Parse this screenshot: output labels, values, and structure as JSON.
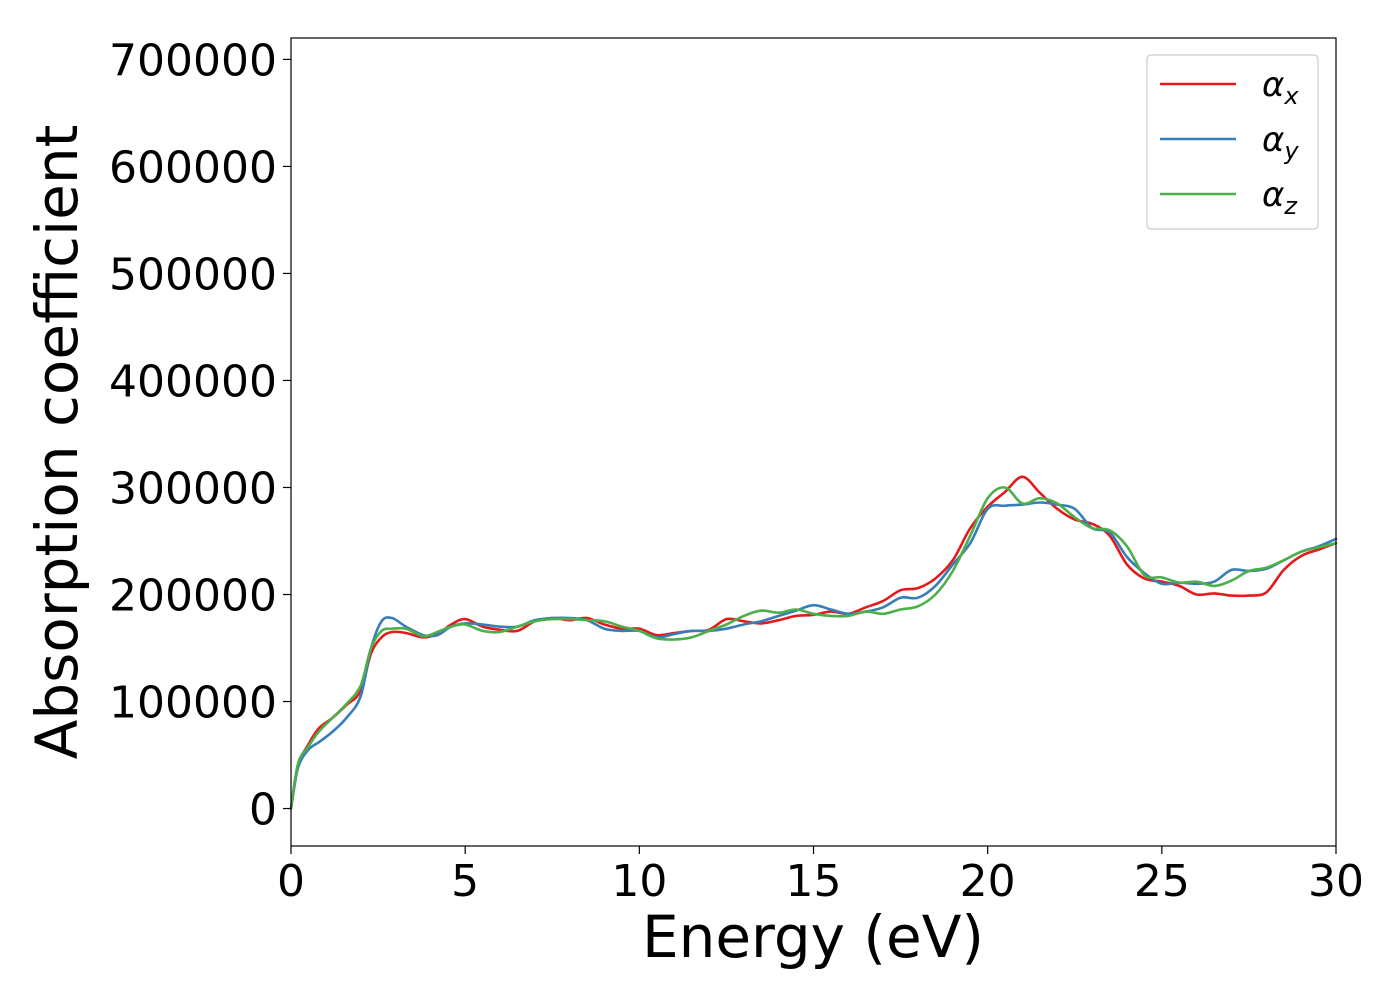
{
  "chart_data": {
    "type": "line",
    "title": "",
    "xlabel": "Energy (eV)",
    "ylabel": "Absorption coefficient",
    "xlim": [
      0,
      30
    ],
    "ylim": [
      -35000,
      720000
    ],
    "xticks": [
      0,
      5,
      10,
      15,
      20,
      25,
      30
    ],
    "xtick_labels": [
      "0",
      "5",
      "10",
      "15",
      "20",
      "25",
      "30"
    ],
    "yticks": [
      0,
      100000,
      200000,
      300000,
      400000,
      500000,
      600000,
      700000
    ],
    "ytick_labels": [
      "0",
      "100000",
      "200000",
      "300000",
      "400000",
      "500000",
      "600000",
      "700000"
    ],
    "grid": false,
    "legend_position": "top-right",
    "series": [
      {
        "name": "α",
        "subscript": "x",
        "color": "#e41a1c",
        "x": [
          0,
          0.2,
          0.5,
          0.8,
          1.2,
          1.6,
          2.0,
          2.3,
          2.6,
          2.9,
          3.3,
          3.8,
          4.2,
          4.6,
          5.0,
          5.5,
          6.0,
          6.5,
          7.0,
          7.5,
          8.0,
          8.5,
          9.0,
          9.5,
          10.0,
          10.5,
          11.0,
          11.5,
          12.0,
          12.5,
          13.0,
          13.5,
          14.0,
          14.5,
          15.0,
          15.5,
          16.0,
          16.5,
          17.0,
          17.5,
          18.0,
          18.5,
          19.0,
          19.5,
          20.0,
          20.5,
          21.0,
          21.5,
          22.0,
          22.5,
          23.0,
          23.5,
          24.0,
          24.5,
          25.0,
          25.5,
          26.0,
          26.5,
          27.0,
          27.5,
          28.0,
          28.5,
          29.0,
          29.5,
          30.0
        ],
        "y": [
          0,
          40000,
          60000,
          75000,
          85000,
          97000,
          110000,
          145000,
          160000,
          165000,
          164000,
          160000,
          163000,
          172000,
          177000,
          170000,
          167000,
          166000,
          175000,
          178000,
          176000,
          178000,
          172000,
          168000,
          168000,
          162000,
          164000,
          166000,
          167000,
          177000,
          175000,
          173000,
          176000,
          180000,
          181000,
          184000,
          182000,
          188000,
          194000,
          204000,
          206000,
          215000,
          232000,
          262000,
          282000,
          296000,
          310000,
          295000,
          280000,
          270000,
          266000,
          255000,
          228000,
          215000,
          212000,
          208000,
          200000,
          201000,
          199000,
          199000,
          202000,
          223000,
          236000,
          242000,
          248000
        ]
      },
      {
        "name": "α",
        "subscript": "y",
        "color": "#377eb8",
        "x": [
          0,
          0.2,
          0.5,
          0.8,
          1.2,
          1.6,
          2.0,
          2.3,
          2.6,
          2.9,
          3.3,
          3.8,
          4.2,
          4.6,
          5.0,
          5.5,
          6.0,
          6.5,
          7.0,
          7.5,
          8.0,
          8.5,
          9.0,
          9.5,
          10.0,
          10.5,
          11.0,
          11.5,
          12.0,
          12.5,
          13.0,
          13.5,
          14.0,
          14.5,
          15.0,
          15.5,
          16.0,
          16.5,
          17.0,
          17.5,
          18.0,
          18.5,
          19.0,
          19.5,
          20.0,
          20.5,
          21.0,
          21.5,
          22.0,
          22.5,
          23.0,
          23.5,
          24.0,
          24.5,
          25.0,
          25.5,
          26.0,
          26.5,
          27.0,
          27.5,
          28.0,
          28.5,
          29.0,
          29.5,
          30.0
        ],
        "y": [
          0,
          38000,
          55000,
          62000,
          72000,
          85000,
          105000,
          150000,
          175000,
          178000,
          170000,
          162000,
          162000,
          170000,
          173000,
          172000,
          170000,
          170000,
          176000,
          178000,
          178000,
          176000,
          168000,
          166000,
          166000,
          160000,
          163000,
          166000,
          166000,
          168000,
          172000,
          175000,
          180000,
          185000,
          190000,
          186000,
          182000,
          184000,
          188000,
          197000,
          197000,
          208000,
          228000,
          248000,
          280000,
          283000,
          284000,
          286000,
          284000,
          280000,
          262000,
          258000,
          235000,
          220000,
          210000,
          211000,
          210000,
          212000,
          223000,
          222000,
          224000,
          232000,
          240000,
          245000,
          252000
        ]
      },
      {
        "name": "α",
        "subscript": "z",
        "color": "#4daf4a",
        "x": [
          0,
          0.2,
          0.5,
          0.8,
          1.2,
          1.6,
          2.0,
          2.3,
          2.6,
          2.9,
          3.3,
          3.8,
          4.2,
          4.6,
          5.0,
          5.5,
          6.0,
          6.5,
          7.0,
          7.5,
          8.0,
          8.5,
          9.0,
          9.5,
          10.0,
          10.5,
          11.0,
          11.5,
          12.0,
          12.5,
          13.0,
          13.5,
          14.0,
          14.5,
          15.0,
          15.5,
          16.0,
          16.5,
          17.0,
          17.5,
          18.0,
          18.5,
          19.0,
          19.5,
          20.0,
          20.5,
          21.0,
          21.5,
          22.0,
          22.5,
          23.0,
          23.5,
          24.0,
          24.5,
          25.0,
          25.5,
          26.0,
          26.5,
          27.0,
          27.5,
          28.0,
          28.5,
          29.0,
          29.5,
          30.0
        ],
        "y": [
          0,
          42000,
          58000,
          72000,
          85000,
          98000,
          115000,
          150000,
          166000,
          168000,
          168000,
          161000,
          165000,
          170000,
          172000,
          166000,
          165000,
          170000,
          175000,
          177000,
          177000,
          176000,
          175000,
          170000,
          166000,
          159000,
          158000,
          160000,
          166000,
          172000,
          180000,
          185000,
          183000,
          186000,
          182000,
          180000,
          180000,
          184000,
          182000,
          186000,
          189000,
          200000,
          222000,
          255000,
          290000,
          300000,
          285000,
          290000,
          285000,
          272000,
          262000,
          260000,
          245000,
          218000,
          216000,
          211000,
          212000,
          208000,
          213000,
          222000,
          225000,
          232000,
          240000,
          244000,
          248000
        ]
      }
    ]
  }
}
